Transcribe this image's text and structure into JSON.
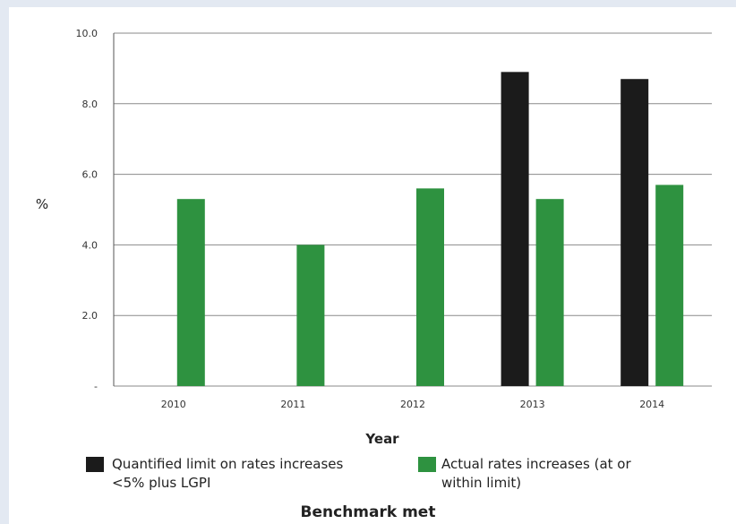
{
  "chart_data": {
    "type": "bar",
    "categories": [
      "2010",
      "2011",
      "2012",
      "2013",
      "2014"
    ],
    "series": [
      {
        "name": "Quantified limit on rates increases <5% plus LGPI",
        "color": "#1b1b1b",
        "values": [
          null,
          null,
          null,
          8.9,
          8.7
        ]
      },
      {
        "name": "Actual rates increases (at or within limit)",
        "color": "#2e9240",
        "values": [
          5.3,
          4.0,
          5.6,
          5.3,
          5.7
        ]
      }
    ],
    "ylabel": "%",
    "xlabel": "Year",
    "ylim": [
      0,
      10
    ],
    "yticks": [
      "-",
      "2.0",
      "4.0",
      "6.0",
      "8.0",
      "10.0"
    ],
    "grid": true,
    "legend_position": "bottom"
  },
  "legend": {
    "item1_line1": "Quantified limit on rates increases",
    "item1_line2": "<5% plus LGPI",
    "item2_line1": "Actual rates increases (at or",
    "item2_line2": "within limit)"
  },
  "footer": "Benchmark met"
}
